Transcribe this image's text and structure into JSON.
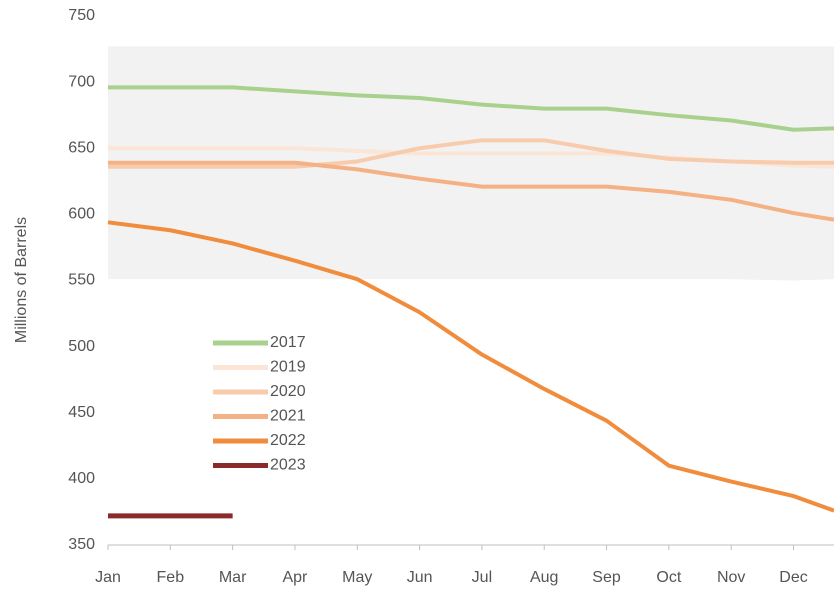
{
  "chart_data": {
    "type": "line",
    "y_label": "Millions of Barrels",
    "x": [
      0,
      1,
      2,
      3,
      4,
      5,
      6,
      7,
      8,
      9,
      10,
      11,
      11.65
    ],
    "xlim": [
      0,
      11.65
    ],
    "xticks": [
      {
        "value": 0,
        "label": "Jan"
      },
      {
        "value": 1,
        "label": "Feb"
      },
      {
        "value": 2,
        "label": "Mar"
      },
      {
        "value": 3,
        "label": "Apr"
      },
      {
        "value": 4,
        "label": "May"
      },
      {
        "value": 5,
        "label": "Jun"
      },
      {
        "value": 6,
        "label": "Jul"
      },
      {
        "value": 7,
        "label": "Aug"
      },
      {
        "value": 8,
        "label": "Sep"
      },
      {
        "value": 9,
        "label": "Oct"
      },
      {
        "value": 10,
        "label": "Nov"
      },
      {
        "value": 11,
        "label": "Dec"
      }
    ],
    "ylim": [
      350,
      750
    ],
    "yticks": [
      350,
      400,
      450,
      500,
      550,
      600,
      650,
      700,
      750
    ],
    "range_band": {
      "color": "#f2f2f2",
      "upper": [
        727,
        727,
        727,
        727,
        727,
        727,
        727,
        727,
        727,
        727,
        727,
        727,
        727
      ],
      "lower": [
        551,
        551,
        551,
        551,
        551,
        551,
        551,
        551,
        551,
        551,
        551,
        550,
        551
      ]
    },
    "series": [
      {
        "name": "2017",
        "color": "#a9d18e",
        "values": [
          696,
          696,
          696,
          693,
          690,
          688,
          683,
          680,
          680,
          675,
          671,
          664,
          665
        ]
      },
      {
        "name": "2019",
        "color": "#fbe5d6",
        "values": [
          650,
          650,
          650,
          650,
          648,
          646,
          646,
          646,
          646,
          643,
          640,
          637,
          636
        ]
      },
      {
        "name": "2020",
        "color": "#f8cbad",
        "values": [
          636,
          636,
          636,
          636,
          640,
          650,
          656,
          656,
          648,
          642,
          640,
          639,
          639
        ]
      },
      {
        "name": "2021",
        "color": "#f4b183",
        "values": [
          639,
          639,
          639,
          639,
          634,
          627,
          621,
          621,
          621,
          617,
          611,
          601,
          596
        ]
      },
      {
        "name": "2022",
        "color": "#f08c3c",
        "values": [
          594,
          588,
          578,
          565,
          551,
          526,
          494,
          468,
          444,
          410,
          398,
          387,
          376
        ]
      },
      {
        "name": "2023",
        "color": "#8b2a2a",
        "values": [
          372,
          372,
          372,
          null,
          null,
          null,
          null,
          null,
          null,
          null,
          null,
          null,
          null
        ]
      }
    ]
  }
}
